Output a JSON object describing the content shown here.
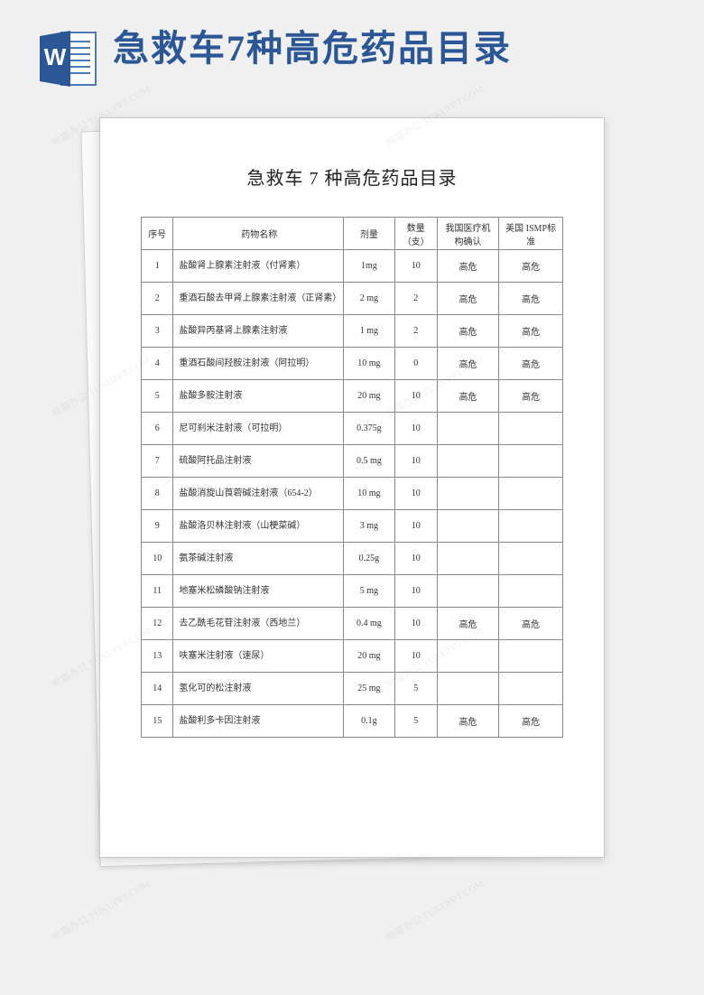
{
  "header": {
    "title": "急救车7种高危药品目录",
    "icon_letter": "W"
  },
  "document": {
    "title": "急救车 7 种高危药品目录",
    "table": {
      "columns": [
        "序号",
        "药物名称",
        "剂量",
        "数量（支）",
        "我国医疗机构确认",
        "美国 ISMP标准"
      ],
      "rows": [
        [
          "1",
          "盐酸肾上腺素注射液（付肾素）",
          "1mg",
          "10",
          "高危",
          "高危"
        ],
        [
          "2",
          "重酒石酸去甲肾上腺素注射液（正肾素）",
          "2 mg",
          "2",
          "高危",
          "高危"
        ],
        [
          "3",
          "盐酸异丙基肾上腺素注射液",
          "1 mg",
          "2",
          "高危",
          "高危"
        ],
        [
          "4",
          "重酒石酸间羟胺注射液（阿拉明）",
          "10 mg",
          "0",
          "高危",
          "高危"
        ],
        [
          "5",
          "盐酸多胺注射液",
          "20 mg",
          "10",
          "高危",
          "高危"
        ],
        [
          "6",
          "尼可刹米注射液（可拉明）",
          "0.375g",
          "10",
          "",
          ""
        ],
        [
          "7",
          "硫酸阿托品注射液",
          "0.5 mg",
          "10",
          "",
          ""
        ],
        [
          "8",
          "盐酸消旋山莨菪碱注射液（654-2）",
          "10 mg",
          "10",
          "",
          ""
        ],
        [
          "9",
          "盐酸洛贝林注射液（山梗菜碱）",
          "3 mg",
          "10",
          "",
          ""
        ],
        [
          "10",
          "氨茶碱注射液",
          "0.25g",
          "10",
          "",
          ""
        ],
        [
          "11",
          "地塞米松磷酸钠注射液",
          "5 mg",
          "10",
          "",
          ""
        ],
        [
          "12",
          "去乙酰毛花苷注射液（西地兰）",
          "0.4 mg",
          "10",
          "高危",
          "高危"
        ],
        [
          "13",
          "呋塞米注射液（速尿）",
          "20 mg",
          "10",
          "",
          ""
        ],
        [
          "14",
          "氢化可的松注射液",
          "25 mg",
          "5",
          "",
          ""
        ],
        [
          "15",
          "盐酸利多卡因注射液",
          "0.1g",
          "5",
          "高危",
          "高危"
        ]
      ]
    }
  },
  "colors": {
    "header_text": "#2b5797",
    "icon_dark": "#2b5797",
    "icon_light": "#4a7ab8",
    "page_bg": "#ffffff",
    "body_bg": "#f0f0f0",
    "border": "#888888"
  },
  "watermark_text": "熊猫办公 TUKUPPT.COM"
}
